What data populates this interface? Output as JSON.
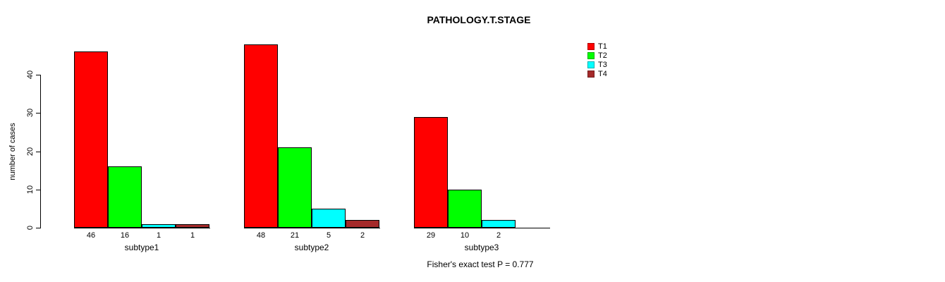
{
  "title": "PATHOLOGY.T.STAGE",
  "annotation": "Fisher's exact test P = 0.777",
  "chart_data": {
    "type": "bar",
    "title": "PATHOLOGY.T.STAGE",
    "xlabel": "",
    "ylabel": "number of cases",
    "ylim": [
      0,
      40
    ],
    "yticks": [
      0,
      10,
      20,
      30,
      40
    ],
    "grid": false,
    "legend_position": "right",
    "categories": [
      "subtype1",
      "subtype2",
      "subtype3"
    ],
    "series": [
      {
        "name": "T1",
        "color": "#ff0000",
        "values": [
          46,
          48,
          29
        ]
      },
      {
        "name": "T2",
        "color": "#00ff00",
        "values": [
          16,
          21,
          10
        ]
      },
      {
        "name": "T3",
        "color": "#00ffff",
        "values": [
          1,
          5,
          2
        ]
      },
      {
        "name": "T4",
        "color": "#a52a2a",
        "values": [
          1,
          2,
          0
        ]
      }
    ],
    "bar_value_labels_shown": true,
    "show_zero_value_labels": false,
    "annotation": "Fisher's exact test P = 0.777"
  }
}
